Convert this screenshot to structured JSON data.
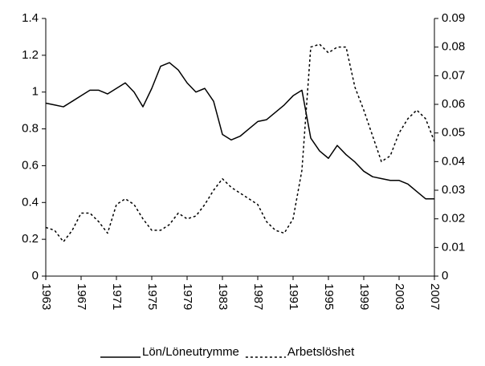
{
  "chart_data": {
    "type": "line",
    "x": [
      1963,
      1964,
      1965,
      1966,
      1967,
      1968,
      1969,
      1970,
      1971,
      1972,
      1973,
      1974,
      1975,
      1976,
      1977,
      1978,
      1979,
      1980,
      1981,
      1982,
      1983,
      1984,
      1985,
      1986,
      1987,
      1988,
      1989,
      1990,
      1991,
      1992,
      1993,
      1994,
      1995,
      1996,
      1997,
      1998,
      1999,
      2000,
      2001,
      2002,
      2003,
      2004,
      2005,
      2006,
      2007
    ],
    "xlim": [
      1963,
      2007
    ],
    "xticks": [
      1963,
      1967,
      1971,
      1975,
      1979,
      1983,
      1987,
      1991,
      1995,
      1999,
      2003,
      2007
    ],
    "ylim": [
      0,
      1.4
    ],
    "yticks": [
      0,
      0.2,
      0.4,
      0.6,
      0.8,
      1,
      1.2,
      1.4
    ],
    "y2lim": [
      0,
      0.09
    ],
    "y2ticks": [
      0,
      0.01,
      0.02,
      0.03,
      0.04,
      0.05,
      0.06,
      0.07,
      0.08,
      0.09
    ],
    "legend": "bottom",
    "series": [
      {
        "name": "Lön/Löneutrymme",
        "color": "#000000",
        "dashed": false,
        "values": [
          0.94,
          0.93,
          0.92,
          0.95,
          0.98,
          1.01,
          1.01,
          0.99,
          1.02,
          1.05,
          1.0,
          0.92,
          1.02,
          1.14,
          1.16,
          1.12,
          1.05,
          1.0,
          1.02,
          0.95,
          0.77,
          0.74,
          0.76,
          0.8,
          0.84,
          0.85,
          0.89,
          0.93,
          0.98,
          1.01,
          0.75,
          0.68,
          0.64,
          0.71,
          0.66,
          0.62,
          0.57,
          0.54,
          0.53,
          0.52,
          0.52,
          0.5,
          0.46,
          0.42,
          0.42
        ]
      },
      {
        "name": "Arbetslöshet",
        "color": "#000000",
        "dashed": true,
        "axis": "y2",
        "values": [
          0.017,
          0.016,
          0.012,
          0.016,
          0.022,
          0.022,
          0.019,
          0.015,
          0.025,
          0.027,
          0.025,
          0.02,
          0.016,
          0.016,
          0.018,
          0.022,
          0.02,
          0.021,
          0.025,
          0.03,
          0.034,
          0.031,
          0.029,
          0.027,
          0.025,
          0.019,
          0.016,
          0.015,
          0.02,
          0.037,
          0.08,
          0.081,
          0.078,
          0.08,
          0.08,
          0.066,
          0.058,
          0.049,
          0.04,
          0.042,
          0.05,
          0.055,
          0.058,
          0.055,
          0.047
        ]
      }
    ]
  }
}
